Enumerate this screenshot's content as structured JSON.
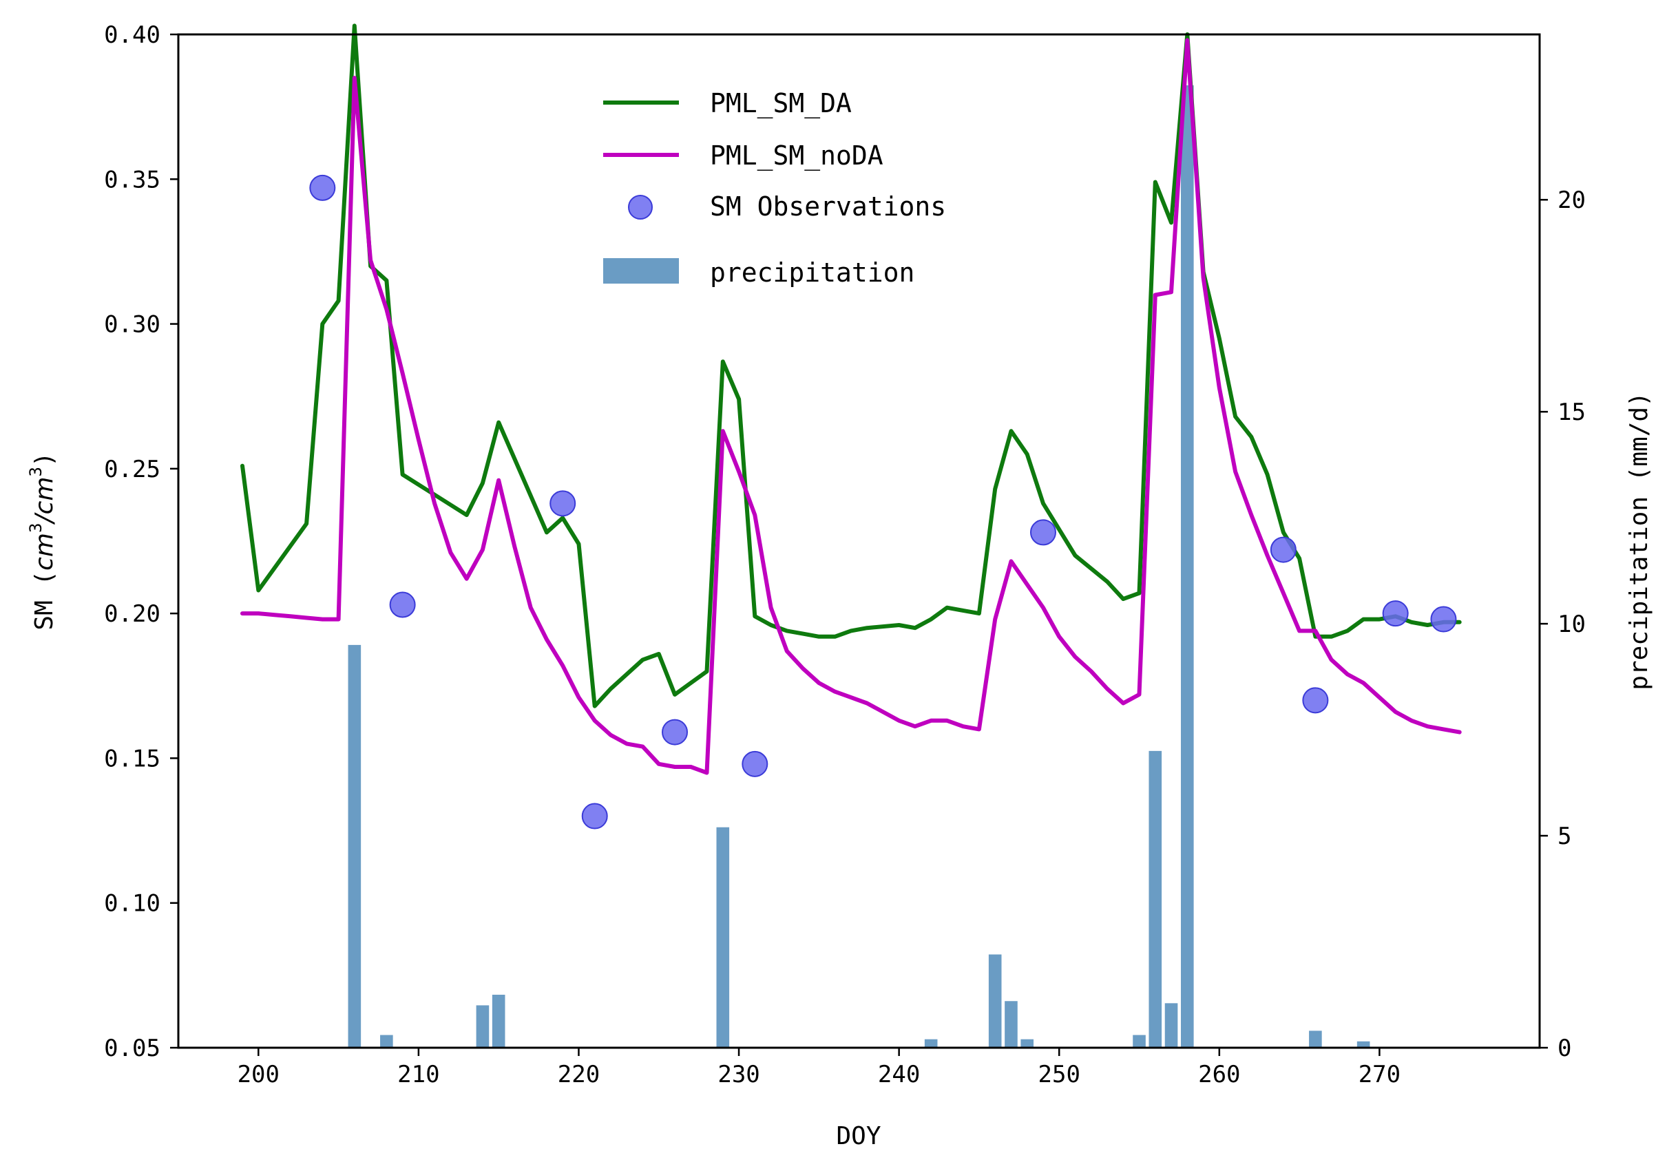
{
  "chart_data": {
    "type": "line",
    "title": "",
    "xlabel": "DOY",
    "ylabel_left": "SM (cm³/cm³)",
    "ylabel_left_parts": {
      "prefix": "SM (",
      "base": "cm",
      "exp": "3",
      "slash": "/"
    },
    "ylabel_right": "precipitation (mm/d)",
    "xlim": [
      195,
      280
    ],
    "ylim_left": [
      0.05,
      0.4
    ],
    "ylim_right": [
      0,
      23.9
    ],
    "xticks": [
      200,
      210,
      220,
      230,
      240,
      250,
      260,
      270
    ],
    "yticks_left": [
      "0.05",
      "0.10",
      "0.15",
      "0.20",
      "0.25",
      "0.30",
      "0.35",
      "0.40"
    ],
    "yticks_right": [
      "0",
      "5",
      "10",
      "15",
      "20"
    ],
    "legend_position": "upper-center",
    "series": [
      {
        "name": "PML_SM_DA",
        "kind": "line",
        "color": "#0e7a0e",
        "x": [
          199,
          200,
          203,
          204,
          205,
          206,
          207,
          208,
          209,
          213,
          214,
          215,
          218,
          219,
          220,
          221,
          222,
          223,
          224,
          225,
          226,
          227,
          228,
          229,
          230,
          231,
          232,
          233,
          234,
          235,
          236,
          237,
          238,
          240,
          241,
          242,
          243,
          244,
          245,
          246,
          247,
          248,
          249,
          251,
          253,
          254,
          255,
          256,
          257,
          258,
          259,
          260,
          261,
          262,
          263,
          264,
          265,
          266,
          267,
          268,
          269,
          270,
          271,
          272,
          273,
          274,
          275
        ],
        "y": [
          0.251,
          0.208,
          0.231,
          0.3,
          0.308,
          0.403,
          0.32,
          0.315,
          0.248,
          0.234,
          0.245,
          0.266,
          0.228,
          0.233,
          0.224,
          0.168,
          0.174,
          0.179,
          0.184,
          0.186,
          0.172,
          0.176,
          0.18,
          0.287,
          0.274,
          0.199,
          0.196,
          0.194,
          0.193,
          0.192,
          0.192,
          0.194,
          0.195,
          0.196,
          0.195,
          0.198,
          0.202,
          0.201,
          0.2,
          0.243,
          0.263,
          0.255,
          0.238,
          0.22,
          0.211,
          0.205,
          0.207,
          0.349,
          0.335,
          0.4,
          0.318,
          0.295,
          0.268,
          0.261,
          0.248,
          0.228,
          0.219,
          0.192,
          0.192,
          0.194,
          0.198,
          0.198,
          0.199,
          0.197,
          0.196,
          0.197,
          0.197
        ]
      },
      {
        "name": "PML_SM_noDA",
        "kind": "line",
        "color": "#bf00bf",
        "x": [
          199,
          200,
          201,
          202,
          203,
          204,
          205,
          206,
          207,
          208,
          209,
          210,
          211,
          212,
          213,
          214,
          215,
          216,
          217,
          218,
          219,
          220,
          221,
          222,
          223,
          224,
          225,
          226,
          227,
          228,
          229,
          230,
          231,
          232,
          233,
          234,
          235,
          236,
          237,
          238,
          239,
          240,
          241,
          242,
          243,
          244,
          245,
          246,
          247,
          248,
          249,
          250,
          251,
          252,
          253,
          254,
          255,
          256,
          257,
          258,
          259,
          260,
          261,
          262,
          263,
          264,
          265,
          266,
          267,
          268,
          269,
          270,
          271,
          272,
          273,
          274,
          275
        ],
        "y": [
          0.2,
          0.2,
          0.1995,
          0.199,
          0.1985,
          0.198,
          0.198,
          0.385,
          0.322,
          0.305,
          0.283,
          0.26,
          0.238,
          0.221,
          0.212,
          0.222,
          0.246,
          0.223,
          0.202,
          0.191,
          0.182,
          0.171,
          0.163,
          0.158,
          0.155,
          0.154,
          0.148,
          0.147,
          0.147,
          0.145,
          0.263,
          0.249,
          0.234,
          0.202,
          0.187,
          0.181,
          0.176,
          0.173,
          0.171,
          0.169,
          0.166,
          0.163,
          0.161,
          0.163,
          0.163,
          0.161,
          0.16,
          0.198,
          0.218,
          0.21,
          0.202,
          0.192,
          0.185,
          0.18,
          0.174,
          0.169,
          0.172,
          0.31,
          0.311,
          0.398,
          0.316,
          0.278,
          0.249,
          0.234,
          0.22,
          0.207,
          0.194,
          0.194,
          0.184,
          0.179,
          0.176,
          0.171,
          0.166,
          0.163,
          0.161,
          0.16,
          0.159
        ]
      }
    ],
    "observations": {
      "name": "SM Observations",
      "color": "#6a6af0",
      "x": [
        204,
        209,
        219,
        221,
        226,
        231,
        249,
        264,
        266,
        271,
        274
      ],
      "y": [
        0.347,
        0.203,
        0.238,
        0.13,
        0.159,
        0.148,
        0.228,
        0.222,
        0.17,
        0.2,
        0.198
      ]
    },
    "precipitation": {
      "name": "precipitation",
      "color": "#6a9cc4",
      "x": [
        206,
        208,
        214,
        215,
        229,
        242,
        246,
        247,
        248,
        255,
        256,
        257,
        258,
        266,
        269
      ],
      "y": [
        9.5,
        0.3,
        1.0,
        1.25,
        5.2,
        0.2,
        2.2,
        1.1,
        0.2,
        0.3,
        7.0,
        1.05,
        22.7,
        0.4,
        0.15
      ]
    }
  }
}
